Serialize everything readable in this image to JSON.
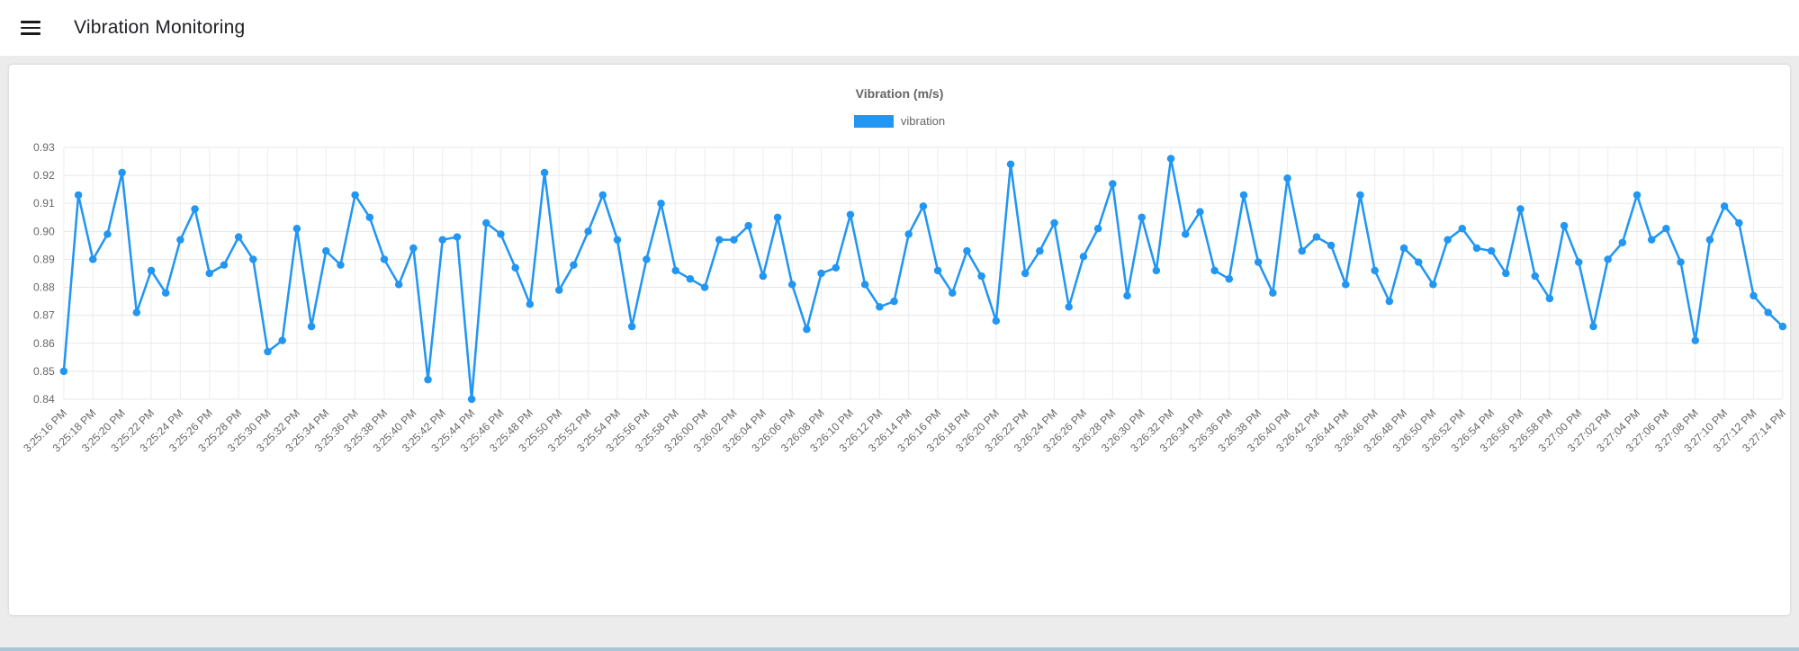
{
  "header": {
    "title": "Vibration Monitoring"
  },
  "chart_data": {
    "type": "line",
    "title": "Vibration (m/s)",
    "legend_position": "top",
    "grid": true,
    "ylim": [
      0.84,
      0.93
    ],
    "y_tick_step": 0.01,
    "y_ticks": [
      "0.84",
      "0.85",
      "0.86",
      "0.87",
      "0.88",
      "0.89",
      "0.90",
      "0.91",
      "0.92",
      "0.93"
    ],
    "x_tick_every": 2,
    "x": [
      "3:25:16 PM",
      "3:25:17 PM",
      "3:25:18 PM",
      "3:25:19 PM",
      "3:25:20 PM",
      "3:25:21 PM",
      "3:25:22 PM",
      "3:25:23 PM",
      "3:25:24 PM",
      "3:25:25 PM",
      "3:25:26 PM",
      "3:25:27 PM",
      "3:25:28 PM",
      "3:25:29 PM",
      "3:25:30 PM",
      "3:25:31 PM",
      "3:25:32 PM",
      "3:25:33 PM",
      "3:25:34 PM",
      "3:25:35 PM",
      "3:25:36 PM",
      "3:25:37 PM",
      "3:25:38 PM",
      "3:25:39 PM",
      "3:25:40 PM",
      "3:25:41 PM",
      "3:25:42 PM",
      "3:25:43 PM",
      "3:25:44 PM",
      "3:25:45 PM",
      "3:25:46 PM",
      "3:25:47 PM",
      "3:25:48 PM",
      "3:25:49 PM",
      "3:25:50 PM",
      "3:25:51 PM",
      "3:25:52 PM",
      "3:25:53 PM",
      "3:25:54 PM",
      "3:25:55 PM",
      "3:25:56 PM",
      "3:25:57 PM",
      "3:25:58 PM",
      "3:25:59 PM",
      "3:26:00 PM",
      "3:26:01 PM",
      "3:26:02 PM",
      "3:26:03 PM",
      "3:26:04 PM",
      "3:26:05 PM",
      "3:26:06 PM",
      "3:26:07 PM",
      "3:26:08 PM",
      "3:26:09 PM",
      "3:26:10 PM",
      "3:26:11 PM",
      "3:26:12 PM",
      "3:26:13 PM",
      "3:26:14 PM",
      "3:26:15 PM",
      "3:26:16 PM",
      "3:26:17 PM",
      "3:26:18 PM",
      "3:26:19 PM",
      "3:26:20 PM",
      "3:26:21 PM",
      "3:26:22 PM",
      "3:26:23 PM",
      "3:26:24 PM",
      "3:26:25 PM",
      "3:26:26 PM",
      "3:26:27 PM",
      "3:26:28 PM",
      "3:26:29 PM",
      "3:26:30 PM",
      "3:26:31 PM",
      "3:26:32 PM",
      "3:26:33 PM",
      "3:26:34 PM",
      "3:26:35 PM",
      "3:26:36 PM",
      "3:26:37 PM",
      "3:26:38 PM",
      "3:26:39 PM",
      "3:26:40 PM",
      "3:26:41 PM",
      "3:26:42 PM",
      "3:26:43 PM",
      "3:26:44 PM",
      "3:26:45 PM",
      "3:26:46 PM",
      "3:26:47 PM",
      "3:26:48 PM",
      "3:26:49 PM",
      "3:26:50 PM",
      "3:26:51 PM",
      "3:26:52 PM",
      "3:26:53 PM",
      "3:26:54 PM",
      "3:26:55 PM",
      "3:26:56 PM",
      "3:26:57 PM",
      "3:26:58 PM",
      "3:26:59 PM",
      "3:27:00 PM",
      "3:27:01 PM",
      "3:27:02 PM",
      "3:27:03 PM",
      "3:27:04 PM",
      "3:27:05 PM",
      "3:27:06 PM",
      "3:27:07 PM",
      "3:27:08 PM",
      "3:27:09 PM",
      "3:27:10 PM",
      "3:27:11 PM",
      "3:27:12 PM",
      "3:27:13 PM",
      "3:27:14 PM"
    ],
    "series": [
      {
        "name": "vibration",
        "color": "#2196f3",
        "values": [
          0.85,
          0.913,
          0.89,
          0.899,
          0.921,
          0.871,
          0.886,
          0.878,
          0.897,
          0.908,
          0.885,
          0.888,
          0.898,
          0.89,
          0.857,
          0.861,
          0.901,
          0.866,
          0.893,
          0.888,
          0.913,
          0.905,
          0.89,
          0.881,
          0.894,
          0.847,
          0.897,
          0.898,
          0.84,
          0.903,
          0.899,
          0.887,
          0.874,
          0.921,
          0.879,
          0.888,
          0.9,
          0.913,
          0.897,
          0.866,
          0.89,
          0.91,
          0.886,
          0.883,
          0.88,
          0.897,
          0.897,
          0.902,
          0.884,
          0.905,
          0.881,
          0.865,
          0.885,
          0.887,
          0.906,
          0.881,
          0.873,
          0.875,
          0.899,
          0.909,
          0.886,
          0.878,
          0.893,
          0.884,
          0.868,
          0.924,
          0.885,
          0.893,
          0.903,
          0.873,
          0.891,
          0.901,
          0.917,
          0.877,
          0.905,
          0.886,
          0.926,
          0.899,
          0.907,
          0.886,
          0.883,
          0.913,
          0.889,
          0.878,
          0.919,
          0.893,
          0.898,
          0.895,
          0.881,
          0.913,
          0.886,
          0.875,
          0.894,
          0.889,
          0.881,
          0.897,
          0.901,
          0.894,
          0.893,
          0.885,
          0.908,
          0.884,
          0.876,
          0.902,
          0.889,
          0.866,
          0.89,
          0.896,
          0.913,
          0.897,
          0.901,
          0.889,
          0.861,
          0.897,
          0.909,
          0.903,
          0.877,
          0.871,
          0.866
        ]
      }
    ]
  }
}
